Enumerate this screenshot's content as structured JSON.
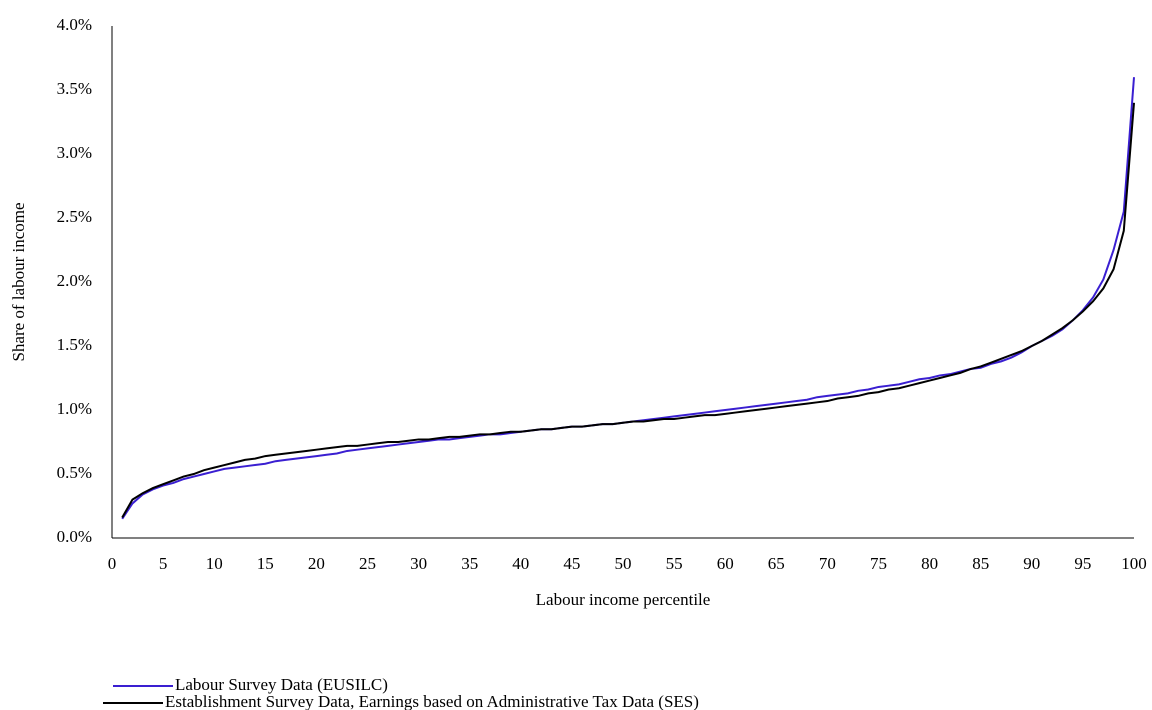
{
  "chart_data": {
    "type": "line",
    "x_label": "Labour income percentile",
    "y_label": "Share of labour income",
    "x": [
      1,
      2,
      3,
      4,
      5,
      6,
      7,
      8,
      9,
      10,
      11,
      12,
      13,
      14,
      15,
      16,
      17,
      18,
      19,
      20,
      21,
      22,
      23,
      24,
      25,
      26,
      27,
      28,
      29,
      30,
      31,
      32,
      33,
      34,
      35,
      36,
      37,
      38,
      39,
      40,
      41,
      42,
      43,
      44,
      45,
      46,
      47,
      48,
      49,
      50,
      51,
      52,
      53,
      54,
      55,
      56,
      57,
      58,
      59,
      60,
      61,
      62,
      63,
      64,
      65,
      66,
      67,
      68,
      69,
      70,
      71,
      72,
      73,
      74,
      75,
      76,
      77,
      78,
      79,
      80,
      81,
      82,
      83,
      84,
      85,
      86,
      87,
      88,
      89,
      90,
      91,
      92,
      93,
      94,
      95,
      96,
      97,
      98,
      99,
      100
    ],
    "series": [
      {
        "name": "Labour Survey Data (EUSILC)",
        "color": "#3a1fd1",
        "values": [
          0.15,
          0.27,
          0.34,
          0.38,
          0.41,
          0.43,
          0.46,
          0.48,
          0.5,
          0.52,
          0.54,
          0.55,
          0.56,
          0.57,
          0.58,
          0.6,
          0.61,
          0.62,
          0.63,
          0.64,
          0.65,
          0.66,
          0.68,
          0.69,
          0.7,
          0.71,
          0.72,
          0.73,
          0.74,
          0.75,
          0.76,
          0.77,
          0.77,
          0.78,
          0.79,
          0.8,
          0.81,
          0.81,
          0.82,
          0.83,
          0.84,
          0.85,
          0.85,
          0.86,
          0.87,
          0.87,
          0.88,
          0.89,
          0.89,
          0.9,
          0.91,
          0.92,
          0.93,
          0.94,
          0.95,
          0.96,
          0.97,
          0.98,
          0.99,
          1.0,
          1.01,
          1.02,
          1.03,
          1.04,
          1.05,
          1.06,
          1.07,
          1.08,
          1.1,
          1.11,
          1.12,
          1.13,
          1.15,
          1.16,
          1.18,
          1.19,
          1.2,
          1.22,
          1.24,
          1.25,
          1.27,
          1.28,
          1.3,
          1.32,
          1.33,
          1.36,
          1.38,
          1.41,
          1.45,
          1.5,
          1.54,
          1.58,
          1.63,
          1.7,
          1.78,
          1.88,
          2.02,
          2.25,
          2.55,
          3.6
        ]
      },
      {
        "name": "Establishment Survey Data, Earnings based on Administrative Tax Data (SES)",
        "color": "#000000",
        "values": [
          0.16,
          0.3,
          0.35,
          0.39,
          0.42,
          0.45,
          0.48,
          0.5,
          0.53,
          0.55,
          0.57,
          0.59,
          0.61,
          0.62,
          0.64,
          0.65,
          0.66,
          0.67,
          0.68,
          0.69,
          0.7,
          0.71,
          0.72,
          0.72,
          0.73,
          0.74,
          0.75,
          0.75,
          0.76,
          0.77,
          0.77,
          0.78,
          0.79,
          0.79,
          0.8,
          0.81,
          0.81,
          0.82,
          0.83,
          0.83,
          0.84,
          0.85,
          0.85,
          0.86,
          0.87,
          0.87,
          0.88,
          0.89,
          0.89,
          0.9,
          0.91,
          0.91,
          0.92,
          0.93,
          0.93,
          0.94,
          0.95,
          0.96,
          0.96,
          0.97,
          0.98,
          0.99,
          1.0,
          1.01,
          1.02,
          1.03,
          1.04,
          1.05,
          1.06,
          1.07,
          1.09,
          1.1,
          1.11,
          1.13,
          1.14,
          1.16,
          1.17,
          1.19,
          1.21,
          1.23,
          1.25,
          1.27,
          1.29,
          1.32,
          1.34,
          1.37,
          1.4,
          1.43,
          1.46,
          1.5,
          1.54,
          1.59,
          1.64,
          1.7,
          1.77,
          1.85,
          1.95,
          2.1,
          2.4,
          3.4
        ]
      }
    ],
    "xlim": [
      0,
      100
    ],
    "xticks": [
      0,
      5,
      10,
      15,
      20,
      25,
      30,
      35,
      40,
      45,
      50,
      55,
      60,
      65,
      70,
      75,
      80,
      85,
      90,
      95,
      100
    ],
    "ylim": [
      0,
      4
    ],
    "yticks": [
      {
        "value": 0,
        "label": "0.0%"
      },
      {
        "value": 0.5,
        "label": "0.5%"
      },
      {
        "value": 1,
        "label": "1.0%"
      },
      {
        "value": 1.5,
        "label": "1.5%"
      },
      {
        "value": 2,
        "label": "2.0%"
      },
      {
        "value": 2.5,
        "label": "2.5%"
      },
      {
        "value": 3,
        "label": "3.0%"
      },
      {
        "value": 3.5,
        "label": "3.5%"
      },
      {
        "value": 4,
        "label": "4.0%"
      }
    ],
    "grid": false
  }
}
